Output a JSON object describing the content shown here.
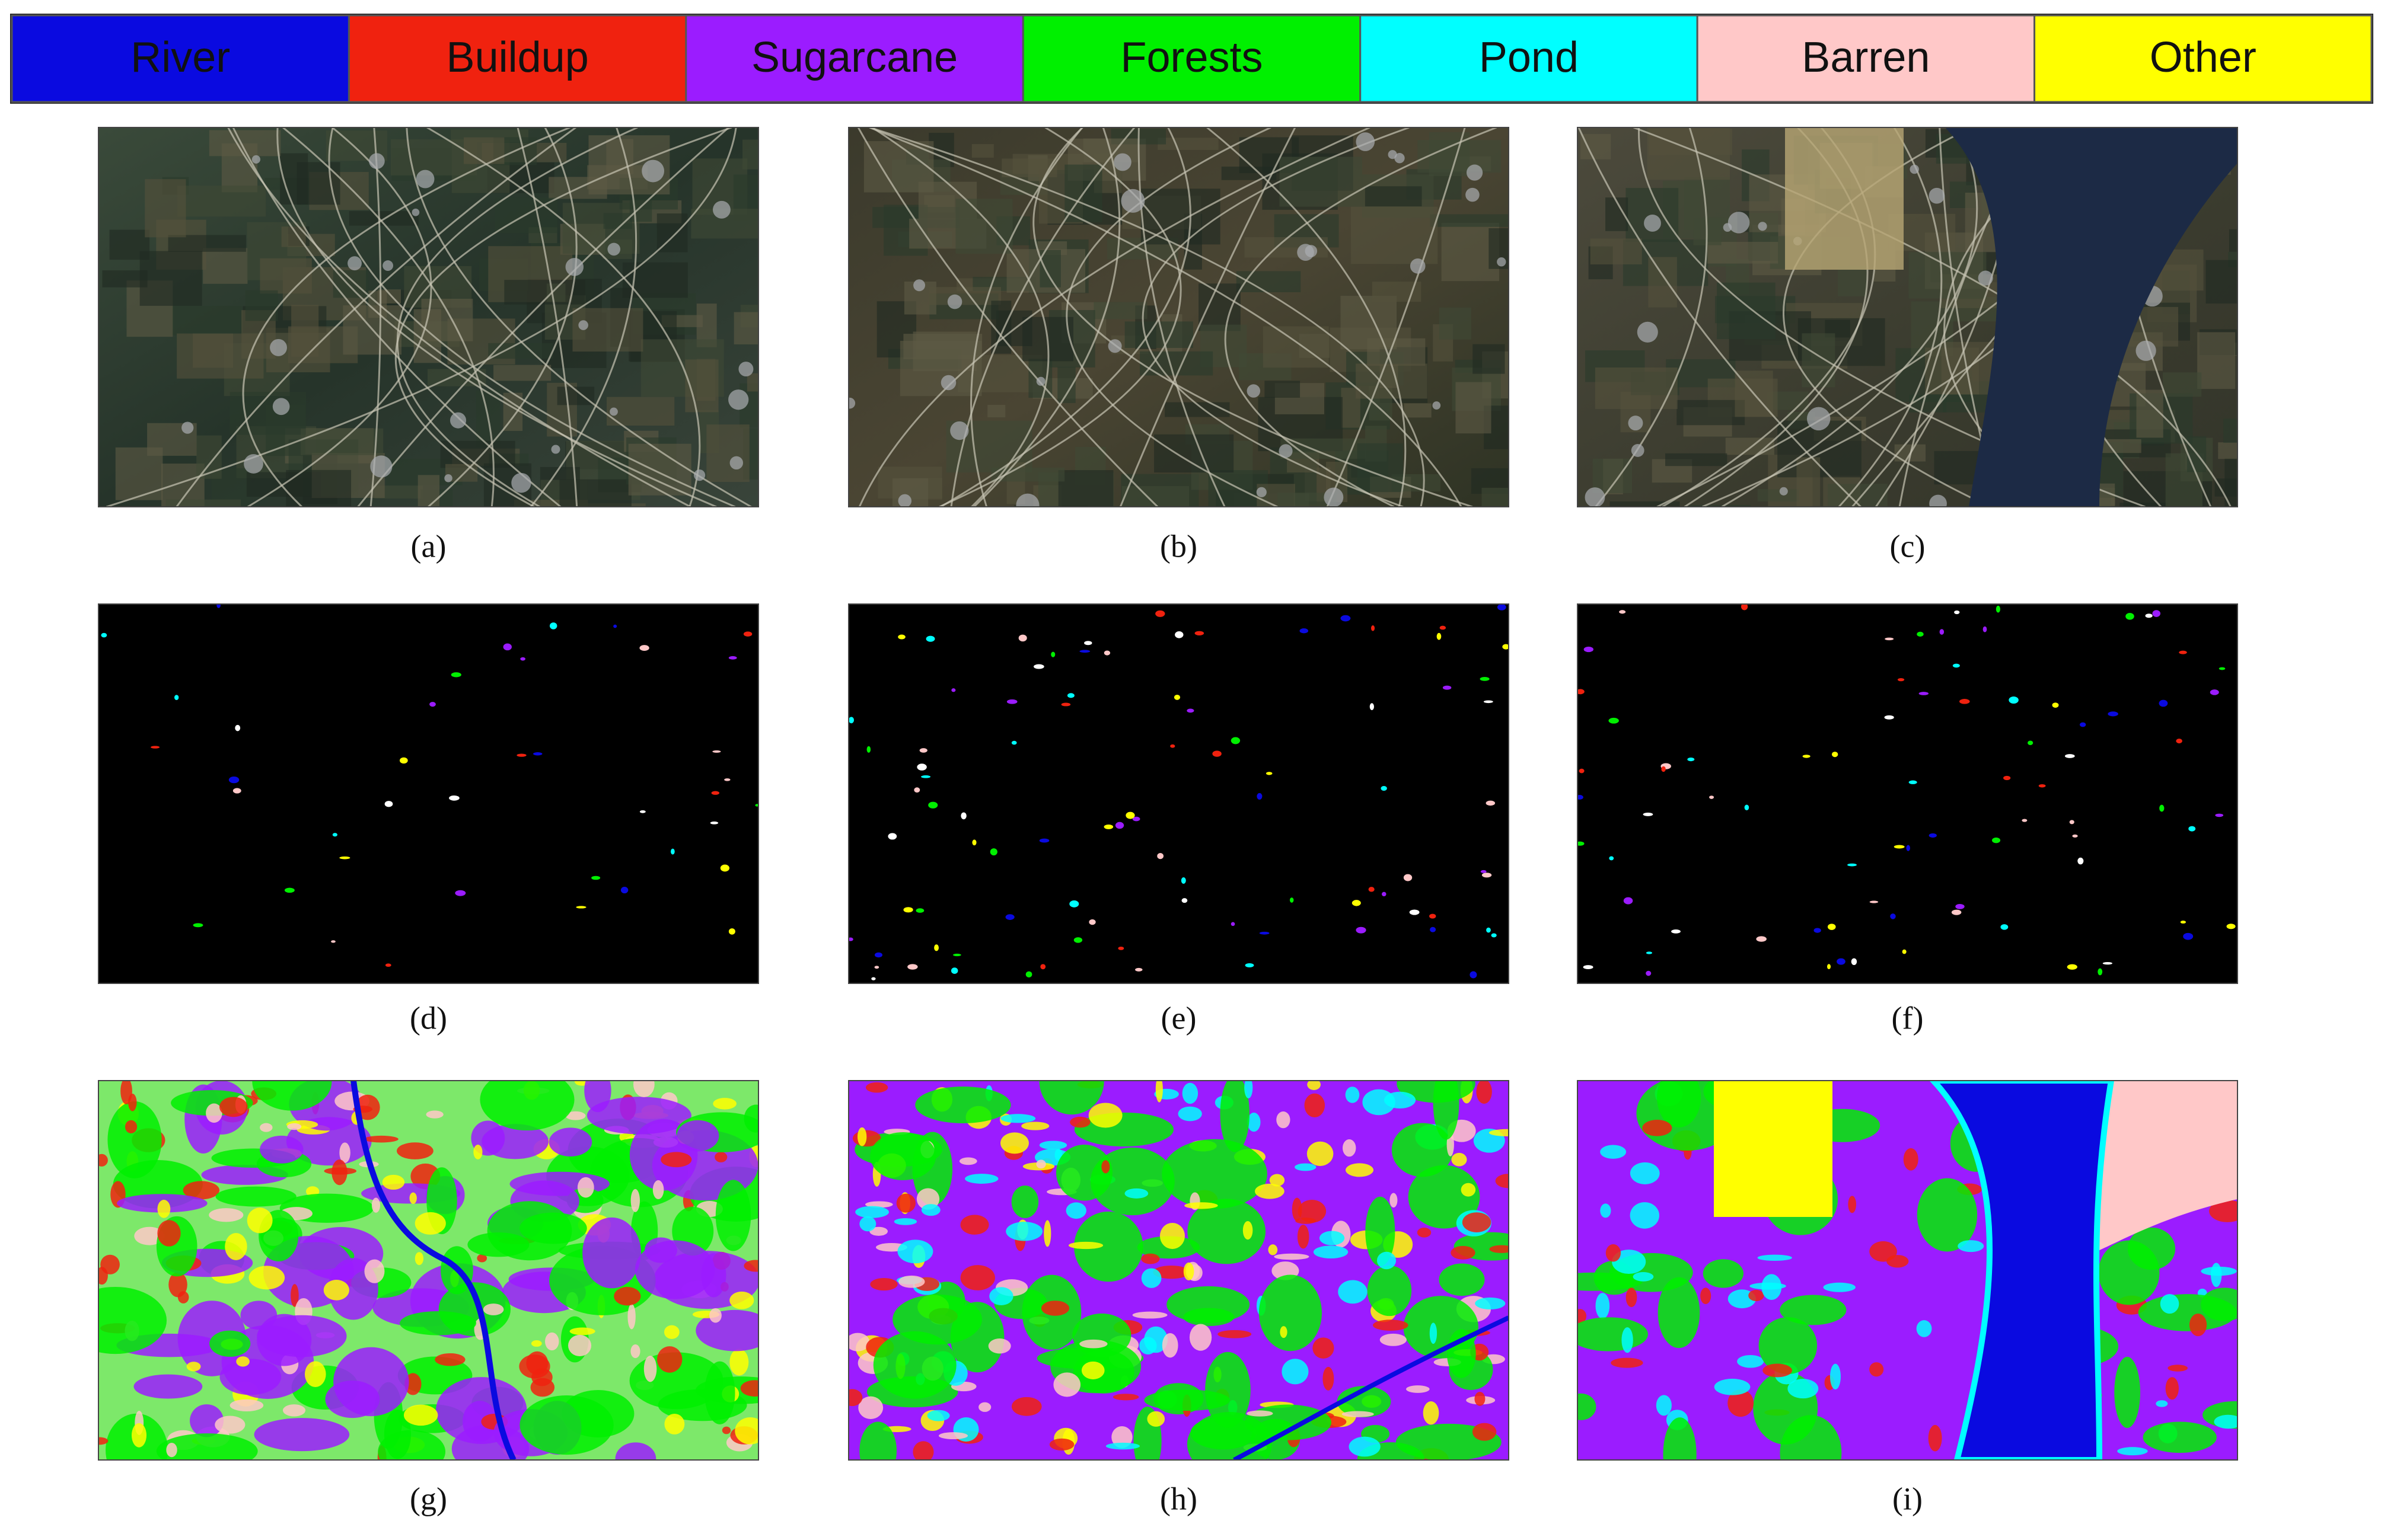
{
  "legend": [
    {
      "label": "River",
      "color": "#0a0ae0"
    },
    {
      "label": "Buildup",
      "color": "#f0220f"
    },
    {
      "label": "Sugarcane",
      "color": "#9b1cff"
    },
    {
      "label": "Forests",
      "color": "#00f000"
    },
    {
      "label": "Pond",
      "color": "#00ffff"
    },
    {
      "label": "Barren",
      "color": "#ffc8c8"
    },
    {
      "label": "Other",
      "color": "#ffff00"
    }
  ],
  "panels": [
    {
      "caption": "(a)"
    },
    {
      "caption": "(b)"
    },
    {
      "caption": "(c)"
    },
    {
      "caption": "(d)"
    },
    {
      "caption": "(e)"
    },
    {
      "caption": "(f)"
    },
    {
      "caption": "(g)"
    },
    {
      "caption": "(h)"
    },
    {
      "caption": "(i)"
    }
  ]
}
